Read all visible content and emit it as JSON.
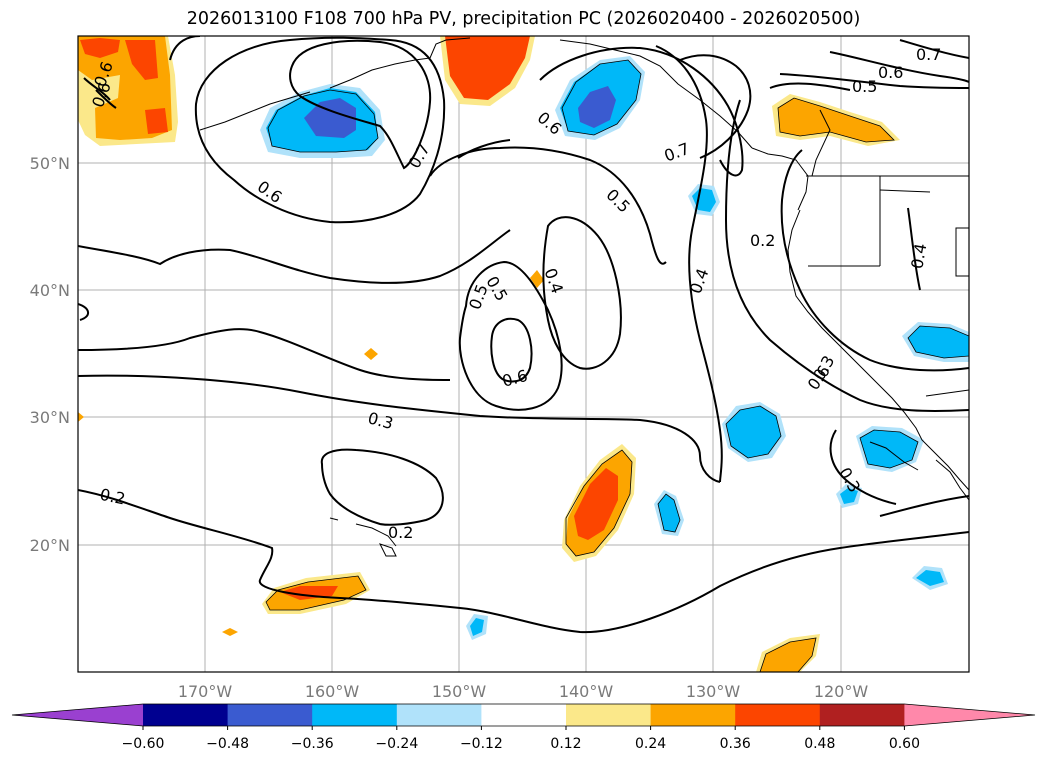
{
  "title": "2026013100 F108 700 hPa PV, precipitation PC (2026020400 - 2026020500)",
  "lat_labels": [
    "50°N",
    "40°N",
    "30°N",
    "20°N"
  ],
  "lon_labels": [
    "170°W",
    "160°W",
    "150°W",
    "140°W",
    "130°W",
    "120°W"
  ],
  "contour_labels": [
    "0.7",
    "0.6",
    "0.5",
    "0.6",
    "0.6",
    "0.7",
    "0.6",
    "0.6",
    "0.7",
    "0.6",
    "0.5",
    "0.5",
    "0.4",
    "0.5",
    "0.6",
    "0.4",
    "0.2",
    "0.4",
    "0.3",
    "0.2",
    "0.2",
    "0.3",
    "0.3"
  ],
  "colorbar": {
    "colors": [
      "#9a40d0",
      "#000090",
      "#3a5bd0",
      "#00b8f8",
      "#b0e2fa",
      "#ffffff",
      "#fbe88a",
      "#fca500",
      "#fc4500",
      "#b02020",
      "#ff88aa"
    ],
    "tick_labels": [
      "−0.60",
      "−0.48",
      "−0.36",
      "−0.24",
      "−0.12",
      "0.12",
      "0.24",
      "0.36",
      "0.48",
      "0.60"
    ]
  }
}
